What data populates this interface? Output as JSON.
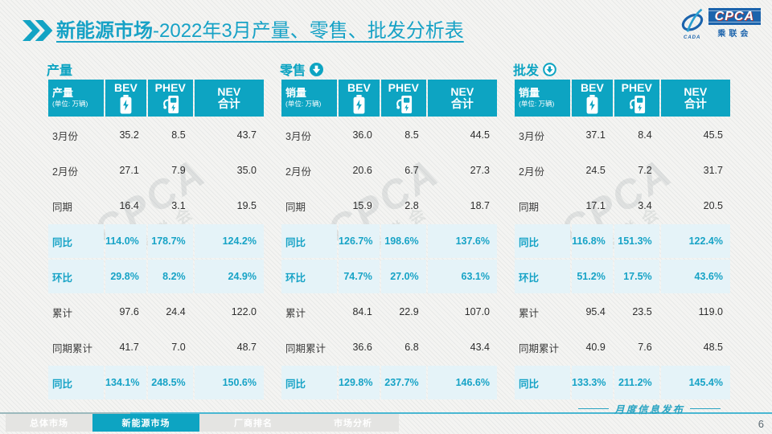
{
  "header": {
    "title_highlight": "新能源市场",
    "title_rest": "-2022年3月产量、零售、批发分析表",
    "logo": {
      "acronym": "CPCA",
      "cn": "乘联会",
      "swoosh_caption": "CADA"
    }
  },
  "watermark": {
    "line1": "CPCA",
    "line2": "乘联会"
  },
  "colors": {
    "teal": "#0da4c2",
    "highlight_bg": "#e5f3f8",
    "highlight_text": "#17a3c6"
  },
  "chart_data": [
    {
      "type": "table",
      "key": "production",
      "title": "产量",
      "arrow_icon": null,
      "header_label": "产量",
      "unit": "(单位: 万辆)",
      "columns": [
        {
          "id": "bev",
          "label": "BEV",
          "icon": "battery-icon"
        },
        {
          "id": "phev",
          "label": "PHEV",
          "icon": "charger-icon"
        },
        {
          "id": "nev-total",
          "label": "NEV\n合计",
          "icon": null
        }
      ],
      "rows": [
        {
          "label": "3月份",
          "values": [
            "35.2",
            "8.5",
            "43.7"
          ],
          "highlight": false
        },
        {
          "label": "2月份",
          "values": [
            "27.1",
            "7.9",
            "35.0"
          ],
          "highlight": false
        },
        {
          "label": "同期",
          "values": [
            "16.4",
            "3.1",
            "19.5"
          ],
          "highlight": false
        },
        {
          "label": "同比",
          "values": [
            "114.0%",
            "178.7%",
            "124.2%"
          ],
          "highlight": true
        },
        {
          "label": "环比",
          "values": [
            "29.8%",
            "8.2%",
            "24.9%"
          ],
          "highlight": true
        },
        {
          "label": "累计",
          "values": [
            "97.6",
            "24.4",
            "122.0"
          ],
          "highlight": false
        },
        {
          "label": "同期累计",
          "values": [
            "41.7",
            "7.0",
            "48.7"
          ],
          "highlight": false
        },
        {
          "label": "同比",
          "values": [
            "134.1%",
            "248.5%",
            "150.6%"
          ],
          "highlight": true
        }
      ]
    },
    {
      "type": "table",
      "key": "retail",
      "title": "零售",
      "arrow_icon": "filled-down-circle",
      "header_label": "销量",
      "unit": "(单位: 万辆)",
      "columns": [
        {
          "id": "bev",
          "label": "BEV",
          "icon": "battery-icon"
        },
        {
          "id": "phev",
          "label": "PHEV",
          "icon": "charger-icon"
        },
        {
          "id": "nev-total",
          "label": "NEV\n合计",
          "icon": null
        }
      ],
      "rows": [
        {
          "label": "3月份",
          "values": [
            "36.0",
            "8.5",
            "44.5"
          ],
          "highlight": false
        },
        {
          "label": "2月份",
          "values": [
            "20.6",
            "6.7",
            "27.3"
          ],
          "highlight": false
        },
        {
          "label": "同期",
          "values": [
            "15.9",
            "2.8",
            "18.7"
          ],
          "highlight": false
        },
        {
          "label": "同比",
          "values": [
            "126.7%",
            "198.6%",
            "137.6%"
          ],
          "highlight": true
        },
        {
          "label": "环比",
          "values": [
            "74.7%",
            "27.0%",
            "63.1%"
          ],
          "highlight": true
        },
        {
          "label": "累计",
          "values": [
            "84.1",
            "22.9",
            "107.0"
          ],
          "highlight": false
        },
        {
          "label": "同期累计",
          "values": [
            "36.6",
            "6.8",
            "43.4"
          ],
          "highlight": false
        },
        {
          "label": "同比",
          "values": [
            "129.8%",
            "237.7%",
            "146.6%"
          ],
          "highlight": true
        }
      ]
    },
    {
      "type": "table",
      "key": "wholesale",
      "title": "批发",
      "arrow_icon": "outlined-down-circle",
      "header_label": "销量",
      "unit": "(单位: 万辆)",
      "columns": [
        {
          "id": "bev",
          "label": "BEV",
          "icon": "battery-icon"
        },
        {
          "id": "phev",
          "label": "PHEV",
          "icon": "charger-icon"
        },
        {
          "id": "nev-total",
          "label": "NEV\n合计",
          "icon": null
        }
      ],
      "rows": [
        {
          "label": "3月份",
          "values": [
            "37.1",
            "8.4",
            "45.5"
          ],
          "highlight": false
        },
        {
          "label": "2月份",
          "values": [
            "24.5",
            "7.2",
            "31.7"
          ],
          "highlight": false
        },
        {
          "label": "同期",
          "values": [
            "17.1",
            "3.4",
            "20.5"
          ],
          "highlight": false
        },
        {
          "label": "同比",
          "values": [
            "116.8%",
            "151.3%",
            "122.4%"
          ],
          "highlight": true
        },
        {
          "label": "环比",
          "values": [
            "51.2%",
            "17.5%",
            "43.6%"
          ],
          "highlight": true
        },
        {
          "label": "累计",
          "values": [
            "95.4",
            "23.5",
            "119.0"
          ],
          "highlight": false
        },
        {
          "label": "同期累计",
          "values": [
            "40.9",
            "7.6",
            "48.5"
          ],
          "highlight": false
        },
        {
          "label": "同比",
          "values": [
            "133.3%",
            "211.2%",
            "145.4%"
          ],
          "highlight": true
        }
      ]
    }
  ],
  "footer": {
    "tabs": [
      {
        "id": "overall-market",
        "label": "总体市场",
        "active": false
      },
      {
        "id": "nev-market",
        "label": "新能源市场",
        "active": true
      },
      {
        "id": "oem-ranking",
        "label": "厂商排名",
        "active": false
      },
      {
        "id": "market-analysis",
        "label": "市场分析",
        "active": false
      }
    ],
    "note": "月度信息发布",
    "page": "6"
  }
}
